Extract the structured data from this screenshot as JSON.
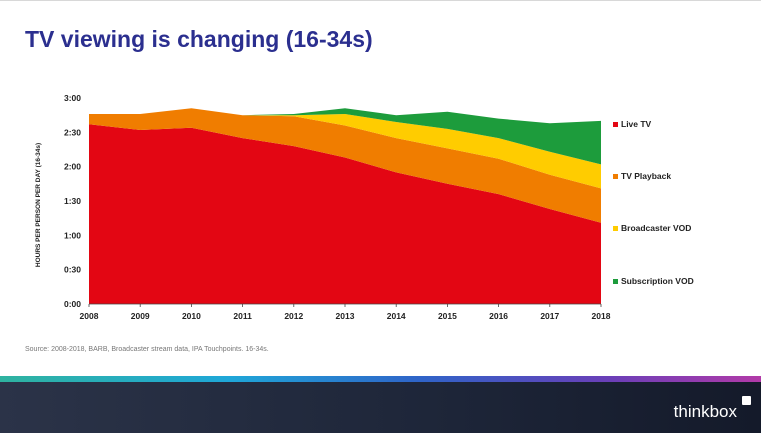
{
  "slide": {
    "title": "TV viewing is changing (16-34s)",
    "source": "Source: 2008-2018, BARB, Broadcaster stream data, IPA Touchpoints. 16-34s.",
    "brand": "thinkbox"
  },
  "colors": {
    "title": "#2b2f8f",
    "live_tv": "#e30613",
    "tv_playback": "#f07d00",
    "broadcaster_vod": "#ffcc00",
    "subscription_vod": "#1d9c3c"
  },
  "chart_data": {
    "type": "area",
    "stacked": true,
    "title": "",
    "xlabel": "",
    "ylabel": "HOURS PER PERSON PER DAY (16-34s)",
    "x": [
      2008,
      2009,
      2010,
      2011,
      2012,
      2013,
      2014,
      2015,
      2016,
      2017,
      2018
    ],
    "y_unit": "minutes",
    "ylim": [
      0,
      180
    ],
    "yticks": [
      0,
      30,
      60,
      90,
      120,
      150,
      180
    ],
    "ytick_labels": [
      "0:00",
      "0:30",
      "1:00",
      "1:30",
      "2:00",
      "2:30",
      "3:00"
    ],
    "grid": false,
    "legend_position": "right",
    "series": [
      {
        "name": "Live TV",
        "color": "#e30613",
        "values": [
          157,
          152,
          154,
          145,
          138,
          128,
          115,
          105,
          96,
          83,
          71
        ]
      },
      {
        "name": "TV Playback",
        "color": "#f07d00",
        "values": [
          9,
          14,
          17,
          20,
          26,
          28,
          30,
          31,
          31,
          30,
          30
        ]
      },
      {
        "name": "Broadcaster VOD",
        "color": "#ffcc00",
        "values": [
          0,
          0,
          0,
          0,
          1,
          10,
          14,
          17,
          18,
          20,
          21
        ]
      },
      {
        "name": "Subscription VOD",
        "color": "#1d9c3c",
        "values": [
          0,
          0,
          0,
          0,
          1,
          5,
          6,
          15,
          17,
          25,
          38
        ]
      }
    ]
  }
}
